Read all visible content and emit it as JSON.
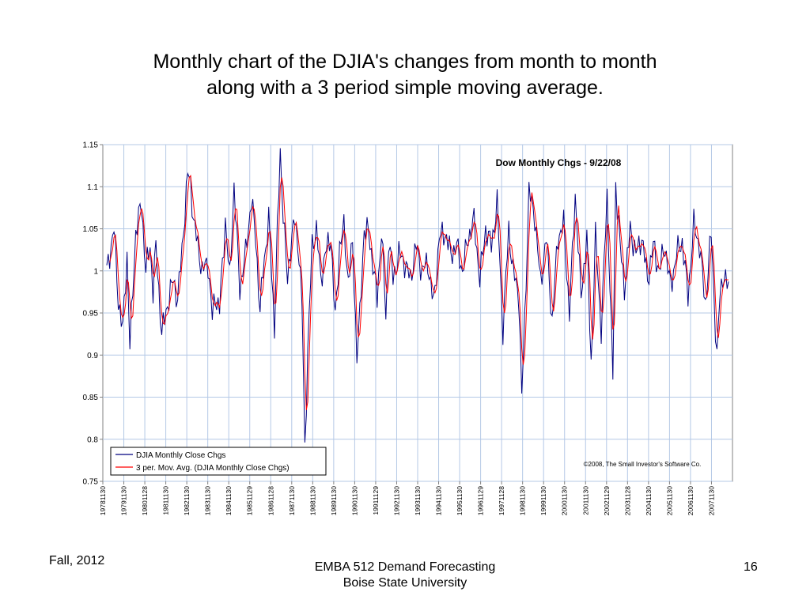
{
  "slide": {
    "title_line1": "Monthly chart of the DJIA's changes from month to month",
    "title_line2": "along with a 3 period simple moving average."
  },
  "footer": {
    "left": "Fall, 2012",
    "center_line1": "EMBA 512 Demand Forecasting",
    "center_line2": "Boise State University",
    "page_number": "16"
  },
  "chart_data": {
    "type": "line",
    "title": "Dow Monthly Chgs - 9/22/08",
    "copyright": "©2008, The Small Investor's Software Co.",
    "ylim": [
      0.75,
      1.15
    ],
    "y_ticks": [
      "0.75",
      "0.8",
      "0.85",
      "0.9",
      "0.95",
      "1",
      "1.05",
      "1.1",
      "1.15"
    ],
    "x_tick_labels": [
      "19781130",
      "19791130",
      "19801128",
      "19811130",
      "19821130",
      "19831130",
      "19841130",
      "19851129",
      "19861128",
      "19871130",
      "19881130",
      "19891130",
      "19901130",
      "19911129",
      "19921130",
      "19931130",
      "19941130",
      "19951130",
      "19961129",
      "19971128",
      "19981130",
      "19991130",
      "20001130",
      "20011130",
      "20021129",
      "20031128",
      "20041130",
      "20051130",
      "20061130",
      "20071130"
    ],
    "grid": true,
    "legend_position": "bottom-left",
    "colors": {
      "series1": "#000080",
      "series2": "#ff0000",
      "grid": "#b4c8e6",
      "axis": "#808080"
    },
    "anchors_monthly": [
      [
        0,
        1.0
      ],
      [
        5,
        1.05
      ],
      [
        8,
        0.965
      ],
      [
        11,
        0.93
      ],
      [
        14,
        1.02
      ],
      [
        16,
        0.91
      ],
      [
        20,
        1.045
      ],
      [
        24,
        1.08
      ],
      [
        27,
        1.0
      ],
      [
        30,
        1.03
      ],
      [
        32,
        0.975
      ],
      [
        34,
        1.03
      ],
      [
        38,
        0.925
      ],
      [
        42,
        0.96
      ],
      [
        46,
        0.99
      ],
      [
        49,
        0.965
      ],
      [
        52,
        1.025
      ],
      [
        56,
        1.115
      ],
      [
        58,
        1.105
      ],
      [
        60,
        1.06
      ],
      [
        63,
        1.03
      ],
      [
        66,
        1.0
      ],
      [
        70,
        1.01
      ],
      [
        73,
        0.945
      ],
      [
        75,
        0.97
      ],
      [
        78,
        0.955
      ],
      [
        82,
        1.06
      ],
      [
        85,
        0.99
      ],
      [
        88,
        1.1
      ],
      [
        92,
        0.98
      ],
      [
        96,
        1.02
      ],
      [
        100,
        1.085
      ],
      [
        103,
        1.04
      ],
      [
        106,
        0.95
      ],
      [
        108,
        1.0
      ],
      [
        112,
        1.06
      ],
      [
        116,
        0.935
      ],
      [
        118,
        1.05
      ],
      [
        120,
        1.14
      ],
      [
        122,
        1.07
      ],
      [
        125,
        0.985
      ],
      [
        127,
        1.03
      ],
      [
        130,
        1.06
      ],
      [
        133,
        1.02
      ],
      [
        135,
        0.96
      ],
      [
        137,
        0.79
      ],
      [
        139,
        0.905
      ],
      [
        142,
        1.03
      ],
      [
        145,
        1.05
      ],
      [
        148,
        0.99
      ],
      [
        151,
        1.02
      ],
      [
        155,
        1.04
      ],
      [
        158,
        0.94
      ],
      [
        161,
        1.03
      ],
      [
        164,
        1.05
      ],
      [
        167,
        0.99
      ],
      [
        170,
        1.03
      ],
      [
        173,
        0.9
      ],
      [
        175,
        0.945
      ],
      [
        178,
        1.05
      ],
      [
        181,
        1.045
      ],
      [
        184,
        1.01
      ],
      [
        187,
        0.965
      ],
      [
        190,
        1.05
      ],
      [
        193,
        0.945
      ],
      [
        195,
        1.04
      ],
      [
        198,
        0.99
      ],
      [
        202,
        1.02
      ],
      [
        206,
        1.01
      ],
      [
        210,
        0.99
      ],
      [
        214,
        1.03
      ],
      [
        218,
        1.0
      ],
      [
        222,
        1.01
      ],
      [
        226,
        0.96
      ],
      [
        230,
        1.04
      ],
      [
        234,
        1.045
      ],
      [
        238,
        1.02
      ],
      [
        242,
        1.03
      ],
      [
        246,
        1.0
      ],
      [
        250,
        1.04
      ],
      [
        254,
        1.06
      ],
      [
        258,
        0.99
      ],
      [
        262,
        1.05
      ],
      [
        266,
        1.03
      ],
      [
        270,
        1.08
      ],
      [
        274,
        0.93
      ],
      [
        278,
        1.05
      ],
      [
        281,
        1.0
      ],
      [
        285,
        0.97
      ],
      [
        287,
        0.85
      ],
      [
        289,
        0.94
      ],
      [
        292,
        1.095
      ],
      [
        296,
        1.065
      ],
      [
        300,
        0.985
      ],
      [
        304,
        1.04
      ],
      [
        308,
        0.94
      ],
      [
        312,
        1.04
      ],
      [
        316,
        1.055
      ],
      [
        320,
        0.95
      ],
      [
        324,
        1.09
      ],
      [
        328,
        0.97
      ],
      [
        332,
        1.04
      ],
      [
        335,
        0.89
      ],
      [
        338,
        1.04
      ],
      [
        342,
        0.93
      ],
      [
        346,
        1.09
      ],
      [
        350,
        0.875
      ],
      [
        352,
        1.105
      ],
      [
        355,
        1.03
      ],
      [
        358,
        0.98
      ],
      [
        362,
        1.05
      ],
      [
        366,
        1.02
      ],
      [
        370,
        1.04
      ],
      [
        374,
        0.99
      ],
      [
        378,
        1.03
      ],
      [
        382,
        1.0
      ],
      [
        386,
        1.03
      ],
      [
        390,
        0.98
      ],
      [
        394,
        1.02
      ],
      [
        398,
        1.035
      ],
      [
        402,
        0.97
      ],
      [
        406,
        1.055
      ],
      [
        410,
        1.03
      ],
      [
        414,
        0.96
      ],
      [
        418,
        1.045
      ],
      [
        422,
        0.895
      ],
      [
        424,
        0.97
      ],
      [
        426,
        0.995
      ],
      [
        430,
        0.98
      ]
    ],
    "series": [
      {
        "name": "DJIA Monthly Close Chgs"
      },
      {
        "name": "3 per. Mov. Avg. (DJIA Monthly Close Chgs)"
      }
    ]
  }
}
